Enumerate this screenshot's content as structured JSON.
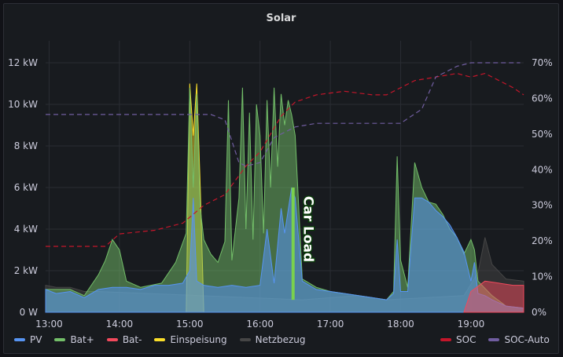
{
  "panel": {
    "title": "Solar"
  },
  "annotation": {
    "label": "Car Load"
  },
  "legend": {
    "left": [
      {
        "name": "PV",
        "color": "#5794f2"
      },
      {
        "name": "Bat+",
        "color": "#73bf69"
      },
      {
        "name": "Bat-",
        "color": "#f2495c"
      },
      {
        "name": "Einspeisung",
        "color": "#fade2a"
      },
      {
        "name": "Netzbezug",
        "color": "#464646"
      }
    ],
    "right": [
      {
        "name": "SOC",
        "color": "#c4162a"
      },
      {
        "name": "SOC-Auto",
        "color": "#705da0"
      }
    ]
  },
  "chart_data": {
    "type": "area",
    "x_ticks": [
      "13:00",
      "14:00",
      "15:00",
      "16:00",
      "17:00",
      "18:00",
      "19:00"
    ],
    "y_left_ticks": [
      "0 W",
      "2 kW",
      "4 kW",
      "6 kW",
      "8 kW",
      "10 kW",
      "12 kW"
    ],
    "y_right_ticks": [
      "0%",
      "10%",
      "20%",
      "30%",
      "40%",
      "50%",
      "60%",
      "70%"
    ],
    "ylim_left": [
      0,
      12
    ],
    "ylim_right": [
      0,
      70
    ],
    "xlim": [
      12.95,
      19.75
    ],
    "series": [
      {
        "name": "PV",
        "color": "#5794f2",
        "points": [
          [
            12.95,
            1.1
          ],
          [
            13.1,
            0.9
          ],
          [
            13.3,
            1.0
          ],
          [
            13.5,
            0.7
          ],
          [
            13.7,
            1.1
          ],
          [
            13.9,
            1.2
          ],
          [
            14.1,
            1.2
          ],
          [
            14.3,
            1.1
          ],
          [
            14.5,
            1.3
          ],
          [
            14.7,
            1.3
          ],
          [
            14.9,
            1.4
          ],
          [
            15.0,
            2.0
          ],
          [
            15.05,
            5.5
          ],
          [
            15.1,
            1.5
          ],
          [
            15.2,
            1.3
          ],
          [
            15.4,
            1.2
          ],
          [
            15.6,
            1.3
          ],
          [
            15.8,
            1.2
          ],
          [
            16.0,
            1.3
          ],
          [
            16.1,
            4.0
          ],
          [
            16.2,
            1.4
          ],
          [
            16.3,
            5.0
          ],
          [
            16.35,
            3.8
          ],
          [
            16.45,
            6.0
          ],
          [
            16.5,
            5.5
          ],
          [
            16.6,
            1.5
          ],
          [
            16.8,
            1.1
          ],
          [
            17.0,
            1.0
          ],
          [
            17.2,
            0.9
          ],
          [
            17.4,
            0.8
          ],
          [
            17.6,
            0.7
          ],
          [
            17.8,
            0.6
          ],
          [
            17.9,
            0.9
          ],
          [
            17.95,
            3.5
          ],
          [
            18.0,
            1.0
          ],
          [
            18.1,
            1.0
          ],
          [
            18.2,
            5.5
          ],
          [
            18.3,
            5.5
          ],
          [
            18.4,
            5.3
          ],
          [
            18.5,
            4.9
          ],
          [
            18.6,
            4.6
          ],
          [
            18.7,
            4.2
          ],
          [
            18.8,
            3.6
          ],
          [
            18.9,
            2.9
          ],
          [
            19.0,
            1.5
          ],
          [
            19.05,
            2.4
          ],
          [
            19.1,
            0.9
          ],
          [
            19.2,
            0.8
          ],
          [
            19.3,
            0.6
          ],
          [
            19.5,
            0.3
          ],
          [
            19.75,
            0.2
          ]
        ]
      },
      {
        "name": "Bat+",
        "color": "#73bf69",
        "points": [
          [
            12.95,
            1.1
          ],
          [
            13.3,
            1.1
          ],
          [
            13.5,
            0.8
          ],
          [
            13.7,
            1.8
          ],
          [
            13.8,
            2.5
          ],
          [
            13.9,
            3.5
          ],
          [
            14.0,
            3.0
          ],
          [
            14.1,
            1.5
          ],
          [
            14.3,
            1.2
          ],
          [
            14.6,
            1.4
          ],
          [
            14.8,
            2.4
          ],
          [
            14.95,
            3.8
          ],
          [
            15.0,
            10.8
          ],
          [
            15.05,
            6.0
          ],
          [
            15.1,
            10.5
          ],
          [
            15.15,
            5.0
          ],
          [
            15.2,
            3.5
          ],
          [
            15.3,
            2.8
          ],
          [
            15.4,
            2.4
          ],
          [
            15.5,
            3.4
          ],
          [
            15.55,
            10.2
          ],
          [
            15.6,
            2.5
          ],
          [
            15.7,
            5.5
          ],
          [
            15.75,
            10.8
          ],
          [
            15.8,
            4.0
          ],
          [
            15.85,
            9.6
          ],
          [
            15.9,
            3.5
          ],
          [
            15.95,
            10.0
          ],
          [
            16.0,
            8.5
          ],
          [
            16.05,
            3.8
          ],
          [
            16.1,
            10.2
          ],
          [
            16.15,
            6.0
          ],
          [
            16.2,
            10.8
          ],
          [
            16.25,
            7.0
          ],
          [
            16.3,
            10.5
          ],
          [
            16.35,
            9.0
          ],
          [
            16.4,
            10.2
          ],
          [
            16.45,
            9.5
          ],
          [
            16.5,
            8.5
          ],
          [
            16.6,
            1.6
          ],
          [
            16.8,
            1.2
          ],
          [
            17.0,
            1.0
          ],
          [
            17.4,
            0.8
          ],
          [
            17.8,
            0.6
          ],
          [
            17.9,
            1.0
          ],
          [
            17.95,
            7.5
          ],
          [
            18.0,
            2.5
          ],
          [
            18.1,
            1.2
          ],
          [
            18.2,
            7.2
          ],
          [
            18.3,
            6.0
          ],
          [
            18.4,
            5.3
          ],
          [
            18.5,
            5.2
          ],
          [
            18.6,
            4.7
          ],
          [
            18.7,
            4.0
          ],
          [
            18.8,
            3.6
          ],
          [
            18.9,
            2.8
          ],
          [
            19.0,
            3.5
          ],
          [
            19.05,
            3.0
          ],
          [
            19.1,
            1.5
          ],
          [
            19.3,
            0.8
          ],
          [
            19.5,
            0.3
          ],
          [
            19.75,
            0.2
          ]
        ]
      },
      {
        "name": "Einspeisung",
        "color": "#fade2a",
        "points": [
          [
            14.95,
            0
          ],
          [
            15.0,
            11.0
          ],
          [
            15.05,
            8.5
          ],
          [
            15.1,
            11.0
          ],
          [
            15.15,
            6.0
          ],
          [
            15.2,
            0
          ]
        ]
      },
      {
        "name": "Bat-",
        "color": "#f2495c",
        "points": [
          [
            18.9,
            0
          ],
          [
            19.0,
            1.0
          ],
          [
            19.2,
            1.5
          ],
          [
            19.4,
            1.4
          ],
          [
            19.6,
            1.3
          ],
          [
            19.75,
            1.3
          ]
        ]
      },
      {
        "name": "Netzbezug",
        "color": "#464646",
        "points": [
          [
            12.95,
            1.3
          ],
          [
            13.1,
            1.2
          ],
          [
            13.3,
            1.2
          ],
          [
            13.5,
            1.0
          ],
          [
            13.7,
            1.0
          ],
          [
            16.6,
            0.6
          ],
          [
            17.4,
            0.8
          ],
          [
            17.8,
            0.6
          ],
          [
            18.9,
            0.8
          ],
          [
            19.1,
            1.9
          ],
          [
            19.2,
            3.6
          ],
          [
            19.3,
            2.3
          ],
          [
            19.5,
            1.6
          ],
          [
            19.75,
            1.5
          ]
        ]
      },
      {
        "name": "SOC",
        "color": "#c4162a",
        "axis": "right",
        "dashed": true,
        "points": [
          [
            12.95,
            18.5
          ],
          [
            13.8,
            18.5
          ],
          [
            14.0,
            22
          ],
          [
            14.5,
            23
          ],
          [
            14.9,
            25
          ],
          [
            15.2,
            30
          ],
          [
            15.5,
            33
          ],
          [
            15.8,
            41
          ],
          [
            16.0,
            45
          ],
          [
            16.3,
            55
          ],
          [
            16.5,
            59
          ],
          [
            16.8,
            61
          ],
          [
            17.2,
            62
          ],
          [
            17.6,
            61
          ],
          [
            17.8,
            61
          ],
          [
            18.0,
            63
          ],
          [
            18.2,
            65
          ],
          [
            18.5,
            66
          ],
          [
            18.8,
            67
          ],
          [
            19.0,
            66
          ],
          [
            19.2,
            67
          ],
          [
            19.4,
            65
          ],
          [
            19.6,
            63
          ],
          [
            19.75,
            61
          ]
        ]
      },
      {
        "name": "SOC-Auto",
        "color": "#705da0",
        "axis": "right",
        "dashed": true,
        "points": [
          [
            12.95,
            55.5
          ],
          [
            14.4,
            55.5
          ],
          [
            15.0,
            55.5
          ],
          [
            15.3,
            55.5
          ],
          [
            15.5,
            54
          ],
          [
            15.7,
            42
          ],
          [
            15.8,
            41
          ],
          [
            16.0,
            42
          ],
          [
            16.2,
            49
          ],
          [
            16.5,
            52
          ],
          [
            16.8,
            53
          ],
          [
            17.2,
            53
          ],
          [
            17.6,
            53
          ],
          [
            18.0,
            53
          ],
          [
            18.3,
            57
          ],
          [
            18.5,
            66
          ],
          [
            18.8,
            69
          ],
          [
            19.0,
            70
          ],
          [
            19.2,
            70
          ],
          [
            19.5,
            70
          ],
          [
            19.7,
            70
          ]
        ]
      }
    ],
    "annotations": [
      {
        "label": "Car Load",
        "x": 16.47,
        "y_from": 0.6,
        "y_to": 6.0
      }
    ]
  }
}
